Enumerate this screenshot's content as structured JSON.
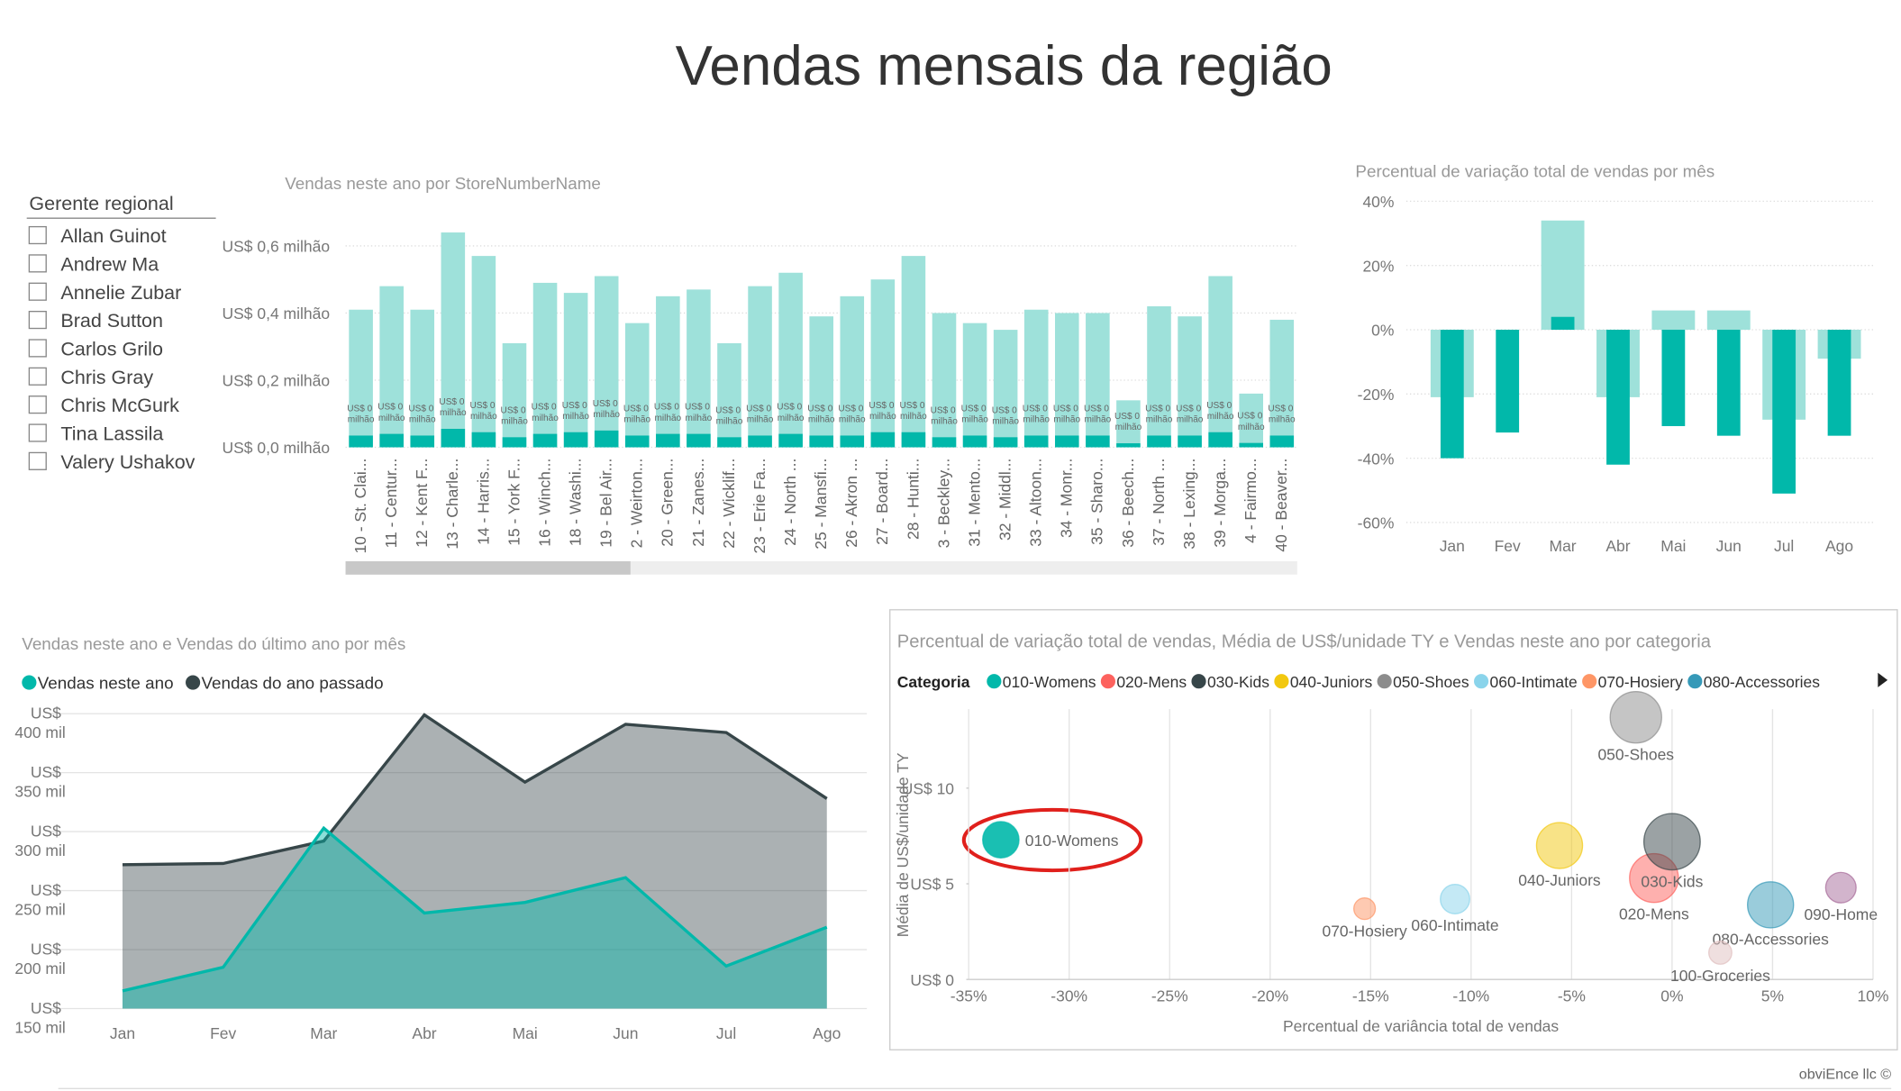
{
  "page_title": "Vendas mensais da região",
  "slicer": {
    "title": "Gerente regional",
    "items": [
      "Allan Guinot",
      "Andrew Ma",
      "Annelie Zubar",
      "Brad Sutton",
      "Carlos Grilo",
      "Chris Gray",
      "Chris McGurk",
      "Tina Lassila",
      "Valery Ushakov"
    ]
  },
  "footer": "obviEnce llc ©",
  "chart_data": [
    {
      "type": "bar",
      "title": "Vendas neste ano por StoreNumberName",
      "categories": [
        "10 - St. Clai...",
        "11 - Centur...",
        "12 - Kent F...",
        "13 - Charle...",
        "14 - Harris...",
        "15 - York F...",
        "16 - Winch...",
        "18 - Washi...",
        "19 - Bel Air...",
        "2 - Weirton...",
        "20 - Green...",
        "21 - Zanes...",
        "22 - Wicklif...",
        "23 - Erie Fa...",
        "24 - North ...",
        "25 - Mansfi...",
        "26 - Akron ...",
        "27 - Board...",
        "28 - Hunti...",
        "3 - Beckley...",
        "31 - Mento...",
        "32 - Middl...",
        "33 - Altoon...",
        "34 - Monr...",
        "35 - Sharo...",
        "36 - Beech...",
        "37 - North ...",
        "38 - Lexing...",
        "39 - Morga...",
        "4 - Fairmo...",
        "40 - Beaver..."
      ],
      "series": [
        {
          "color": "#9ee1da",
          "values": [
            0.41,
            0.48,
            0.41,
            0.64,
            0.57,
            0.31,
            0.49,
            0.46,
            0.51,
            0.37,
            0.45,
            0.47,
            0.31,
            0.48,
            0.52,
            0.39,
            0.45,
            0.5,
            0.57,
            0.4,
            0.37,
            0.35,
            0.41,
            0.4,
            0.4,
            0.14,
            0.42,
            0.39,
            0.51,
            0.16,
            0.38
          ]
        },
        {
          "color": "#01b8aa",
          "values": [
            0.035,
            0.04,
            0.035,
            0.055,
            0.045,
            0.03,
            0.04,
            0.045,
            0.05,
            0.035,
            0.04,
            0.04,
            0.03,
            0.035,
            0.04,
            0.035,
            0.035,
            0.045,
            0.045,
            0.03,
            0.035,
            0.03,
            0.035,
            0.035,
            0.035,
            0.012,
            0.035,
            0.035,
            0.045,
            0.013,
            0.035
          ],
          "value_labels": [
            "US$ 0 milhão",
            "US$ 0 milhão",
            "US$ 0 milhão",
            "US$ 0 milhão",
            "US$ 0 milhão",
            "US$ 0 milhão",
            "US$ 0 milhão",
            "US$ 0 milhão",
            "US$ 0 milhão",
            "US$ 0 milhão",
            "US$ 0 milhão",
            "US$ 0 milhão",
            "US$ 0 milhão",
            "US$ 0 milhão",
            "US$ 0 milhão",
            "US$ 0 milhão",
            "US$ 0 milhão",
            "US$ 0 milhão",
            "US$ 0 milhão",
            "US$ 0 milhão",
            "US$ 0 milhão",
            "US$ 0 milhão",
            "US$ 0 milhão",
            "US$ 0 milhão",
            "US$ 0 milhão",
            "US$ 0 milhão",
            "US$ 0 milhão",
            "US$ 0 milhão",
            "US$ 0 milhão",
            "US$ 0 milhão",
            "US$ 0 milhão"
          ]
        }
      ],
      "ylim": [
        0,
        0.65
      ],
      "yticks": [
        {
          "value": 0,
          "label": "US$ 0,0 milhão"
        },
        {
          "value": 0.2,
          "label": "US$ 0,2 milhão"
        },
        {
          "value": 0.4,
          "label": "US$ 0,4 milhão"
        },
        {
          "value": 0.6,
          "label": "US$ 0,6 milhão"
        }
      ],
      "grid": true
    },
    {
      "type": "bar",
      "title": "Percentual de variação total de vendas por mês",
      "categories": [
        "Jan",
        "Fev",
        "Mar",
        "Abr",
        "Mai",
        "Jun",
        "Jul",
        "Ago"
      ],
      "series": [
        {
          "color": "#9ee1da",
          "values": [
            -21,
            0,
            34,
            -21,
            6,
            6,
            -28,
            -9
          ]
        },
        {
          "color": "#01b8aa",
          "values": [
            -40,
            -32,
            4,
            -42,
            -30,
            -33,
            -51,
            -33
          ]
        }
      ],
      "ylim": [
        -60,
        40
      ],
      "yticks": [
        {
          "value": -60,
          "label": "-60%"
        },
        {
          "value": -40,
          "label": "-40%"
        },
        {
          "value": -20,
          "label": "-20%"
        },
        {
          "value": 0,
          "label": "0%"
        },
        {
          "value": 20,
          "label": "20%"
        },
        {
          "value": 40,
          "label": "40%"
        }
      ],
      "grid": true
    },
    {
      "type": "area",
      "title": "Vendas neste ano e Vendas do último ano por mês",
      "categories": [
        "Jan",
        "Fev",
        "Mar",
        "Abr",
        "Mai",
        "Jun",
        "Jul",
        "Ago"
      ],
      "series": [
        {
          "name": "Vendas do ano passado",
          "color": "#374649",
          "values": [
            272,
            273,
            292,
            399,
            342,
            391,
            384,
            328
          ]
        },
        {
          "name": "Vendas neste ano",
          "color": "#01b8aa",
          "values": [
            165,
            185,
            303,
            231,
            240,
            261,
            186,
            219
          ]
        }
      ],
      "ylim": [
        150,
        410
      ],
      "yticks": [
        {
          "value": 150,
          "label": "US$ 150 mil"
        },
        {
          "value": 200,
          "label": "US$ 200 mil"
        },
        {
          "value": 250,
          "label": "US$ 250 mil"
        },
        {
          "value": 300,
          "label": "US$ 300 mil"
        },
        {
          "value": 350,
          "label": "US$ 350 mil"
        },
        {
          "value": 400,
          "label": "US$ 400 mil"
        }
      ],
      "grid": true
    },
    {
      "type": "scatter",
      "title": "Percentual de variação total de vendas, Média de US$/unidade TY e Vendas neste ano por categoria",
      "legend_title": "Categoria",
      "x_label": "Percentual de variância total de vendas",
      "y_label": "Média de US$/unidade TY",
      "series": [
        {
          "name": "010-Womens",
          "color": "#01b8aa",
          "x": [
            -33.4
          ],
          "values": [
            7.3
          ],
          "sizes": [
            1.0
          ]
        },
        {
          "name": "020-Mens",
          "color": "#fd625e",
          "x": [
            -0.9
          ],
          "values": [
            5.3
          ],
          "sizes": [
            1.8
          ]
        },
        {
          "name": "030-Kids",
          "color": "#374649",
          "x": [
            0
          ],
          "values": [
            7.2
          ],
          "sizes": [
            2.4
          ]
        },
        {
          "name": "040-Juniors",
          "color": "#f2c80f",
          "x": [
            -5.6
          ],
          "values": [
            7.0
          ],
          "sizes": [
            1.6
          ]
        },
        {
          "name": "050-Shoes",
          "color": "#8c8c8c",
          "x": [
            -1.8
          ],
          "values": [
            13.7
          ],
          "sizes": [
            2.0
          ]
        },
        {
          "name": "060-Intimate",
          "color": "#8ad4eb",
          "x": [
            -10.8
          ],
          "values": [
            4.2
          ],
          "sizes": [
            0.65
          ]
        },
        {
          "name": "070-Hosiery",
          "color": "#fe9666",
          "x": [
            -15.3
          ],
          "values": [
            3.7
          ],
          "sizes": [
            0.35
          ]
        },
        {
          "name": "080-Accessories",
          "color": "#3599b8",
          "x": [
            4.9
          ],
          "values": [
            3.9
          ],
          "sizes": [
            1.6
          ]
        },
        {
          "name": "090-Home",
          "color": "#a66999",
          "x": [
            8.4
          ],
          "values": [
            4.8
          ],
          "sizes": [
            0.7
          ]
        },
        {
          "name": "100-Groceries",
          "color": "#dfbfbf",
          "x": [
            2.4
          ],
          "values": [
            1.4
          ],
          "sizes": [
            0.4
          ]
        }
      ],
      "xlim": [
        -35,
        10
      ],
      "ylim": [
        0,
        14
      ],
      "xticks": [
        {
          "value": -35,
          "label": "-35%"
        },
        {
          "value": -30,
          "label": "-30%"
        },
        {
          "value": -25,
          "label": "-25%"
        },
        {
          "value": -20,
          "label": "-20%"
        },
        {
          "value": -15,
          "label": "-15%"
        },
        {
          "value": -10,
          "label": "-10%"
        },
        {
          "value": -5,
          "label": "-5%"
        },
        {
          "value": 0,
          "label": "0%"
        },
        {
          "value": 5,
          "label": "5%"
        },
        {
          "value": 10,
          "label": "10%"
        }
      ],
      "yticks": [
        {
          "value": 0,
          "label": "US$ 0"
        },
        {
          "value": 5,
          "label": "US$ 5"
        },
        {
          "value": 10,
          "label": "US$ 10"
        }
      ],
      "grid": true
    }
  ]
}
